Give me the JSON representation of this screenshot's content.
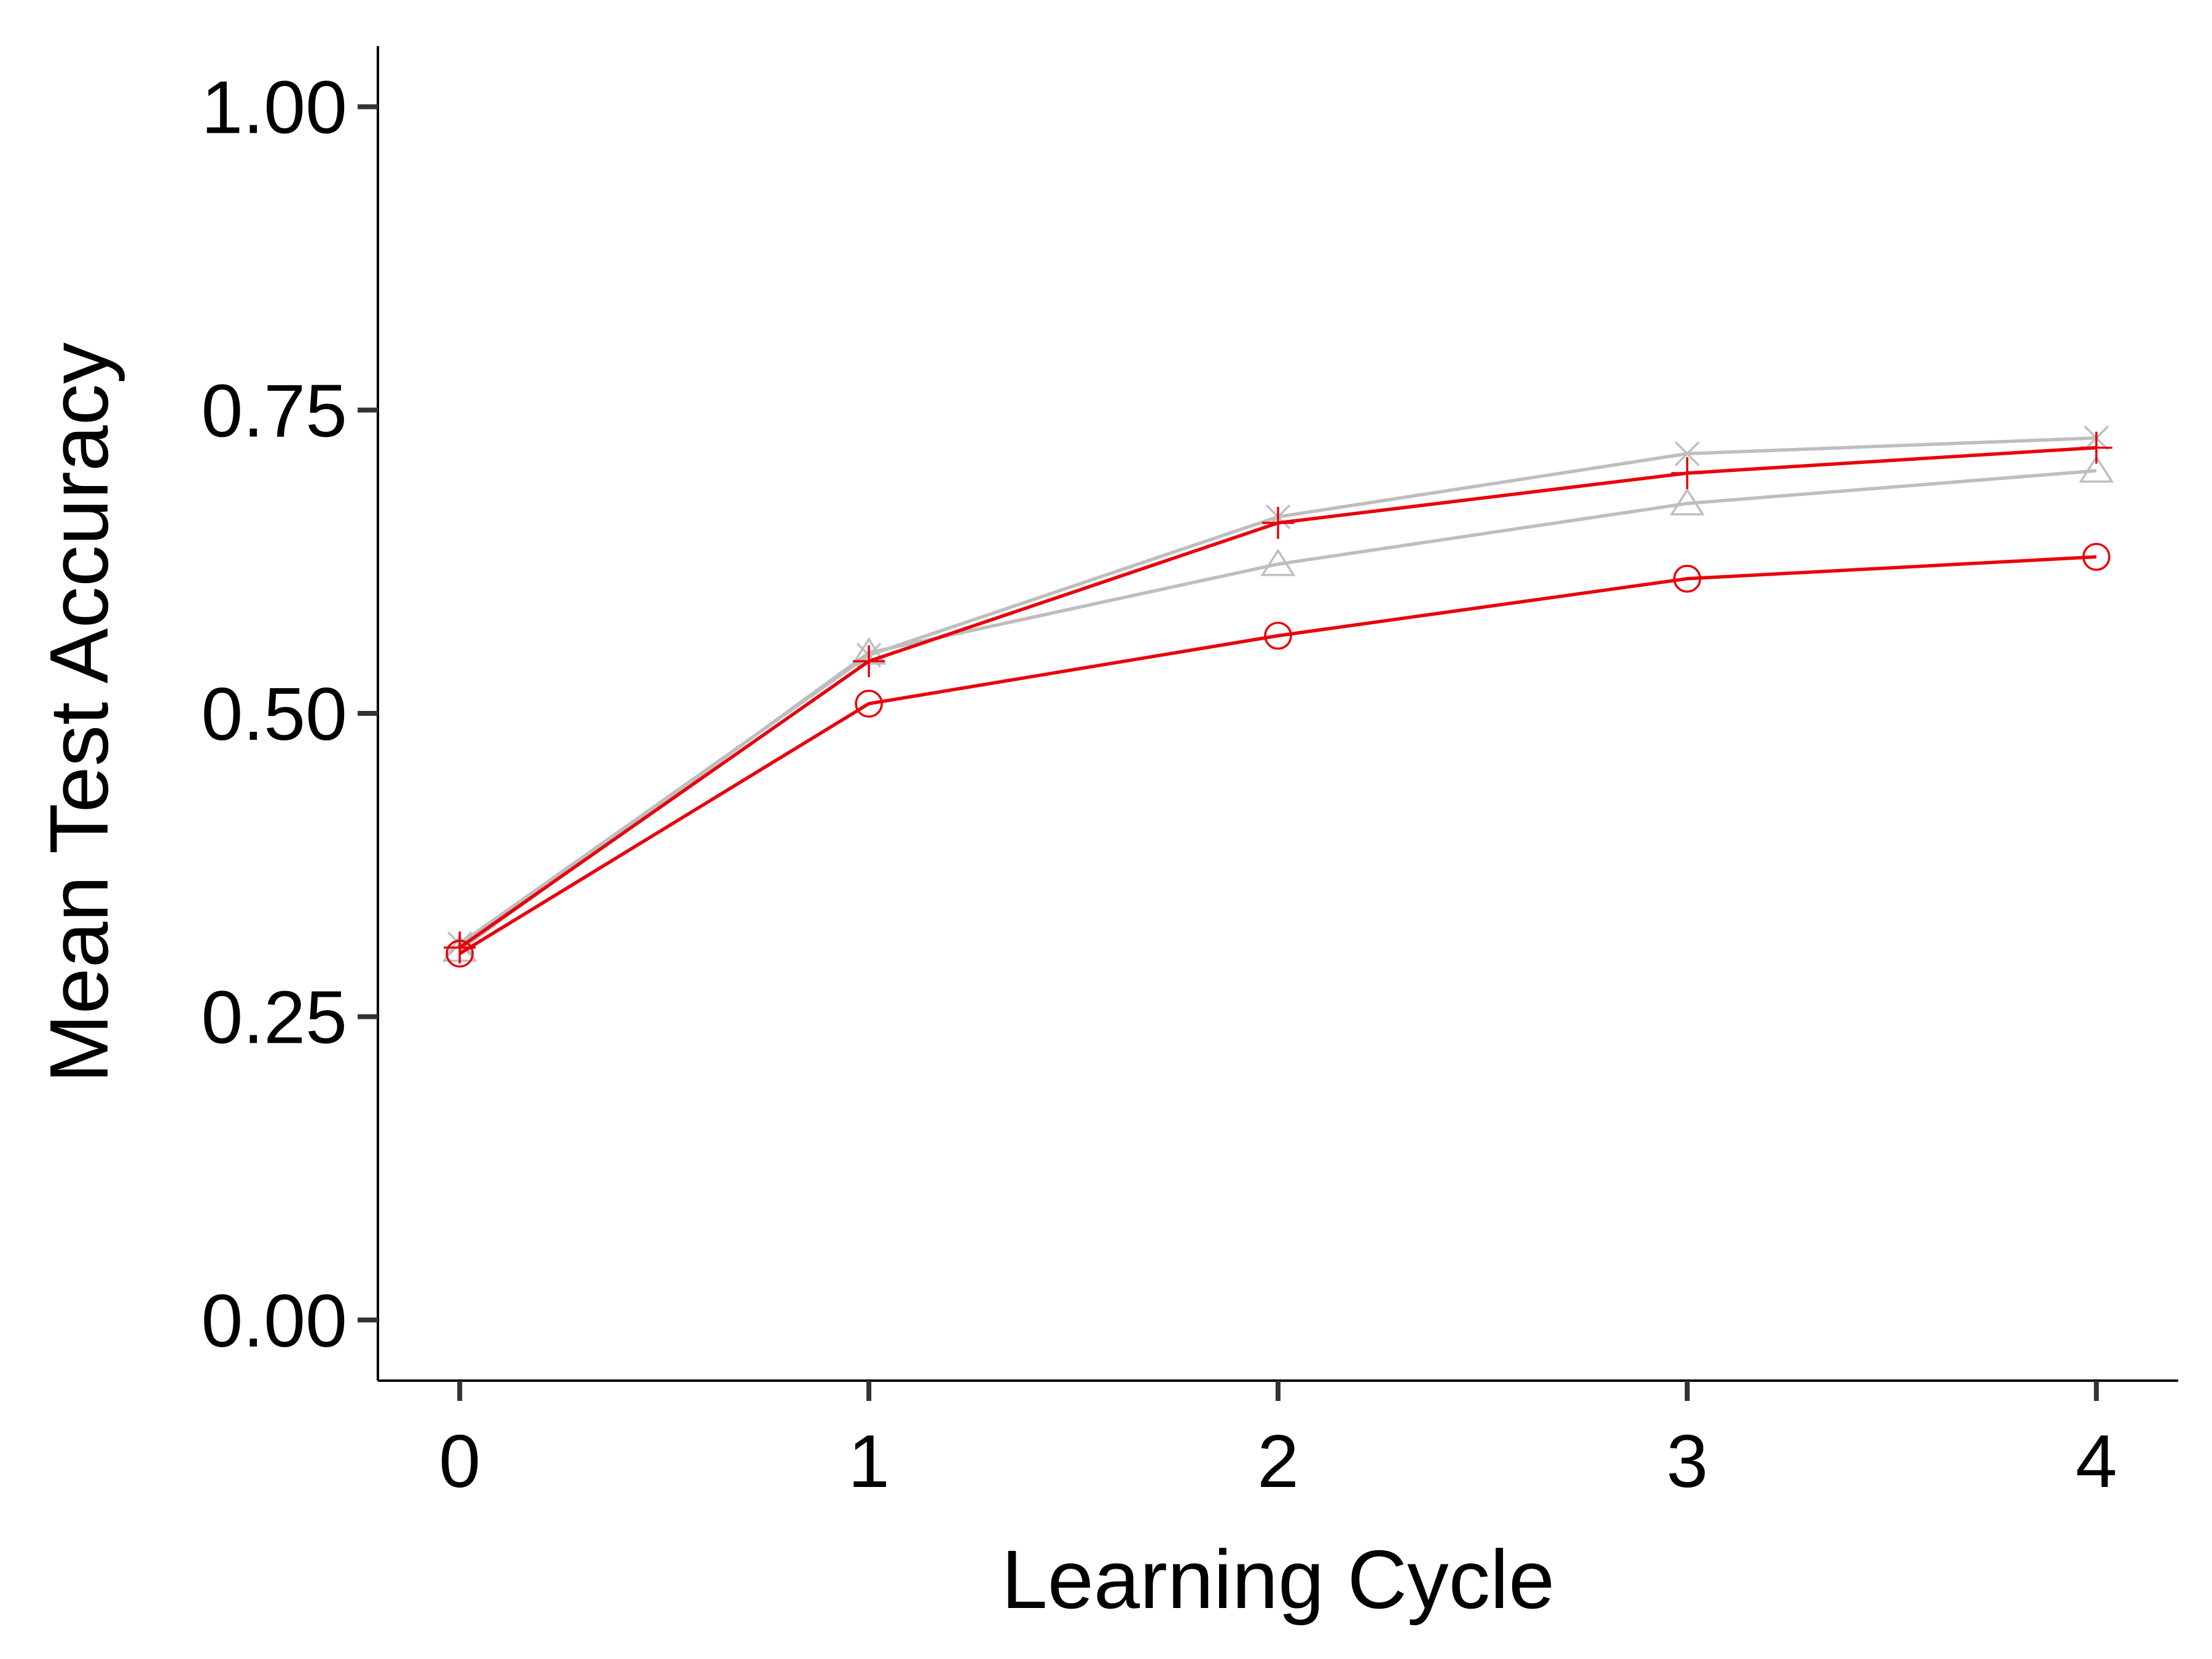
{
  "chart_data": {
    "type": "line",
    "title": "",
    "xlabel": "Learning Cycle",
    "ylabel": "Mean Test Accuracy",
    "x": [
      0,
      1,
      2,
      3,
      4
    ],
    "xticks": [
      "0",
      "1",
      "2",
      "3",
      "4"
    ],
    "yticks": [
      "0.00",
      "0.25",
      "0.50",
      "0.75",
      "1.00"
    ],
    "xlim": [
      -0.2,
      4.2
    ],
    "ylim": [
      -0.05,
      1.05
    ],
    "grid": false,
    "legend": "none",
    "series": [
      {
        "values": [
          0.31,
          0.548,
          0.662,
          0.714,
          0.727
        ],
        "color": "#bebebe",
        "marker": "x"
      },
      {
        "values": [
          0.305,
          0.55,
          0.623,
          0.673,
          0.7
        ],
        "color": "#bebebe",
        "marker": "triangle"
      },
      {
        "values": [
          0.307,
          0.543,
          0.657,
          0.698,
          0.719
        ],
        "color": "#e8000b",
        "marker": "plus"
      },
      {
        "values": [
          0.302,
          0.508,
          0.564,
          0.611,
          0.629
        ],
        "color": "#e8000b",
        "marker": "circle"
      }
    ]
  }
}
